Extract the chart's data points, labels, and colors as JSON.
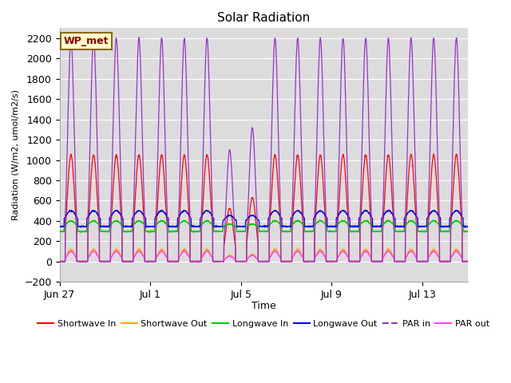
{
  "title": "Solar Radiation",
  "xlabel": "Time",
  "ylabel": "Radiation (W/m2, umol/m2/s)",
  "ylim": [
    -200,
    2300
  ],
  "yticks": [
    -200,
    0,
    200,
    400,
    600,
    800,
    1000,
    1200,
    1400,
    1600,
    1800,
    2000,
    2200
  ],
  "bg_color": "#dcdcdc",
  "grid_color": "#ffffff",
  "station_label": "WP_met",
  "station_label_bg": "#ffffcc",
  "station_label_border": "#8b6914",
  "station_label_text": "#8b0000",
  "n_days": 18,
  "pts_per_day": 144,
  "xtick_labels": [
    "Jun 27",
    "Jul 1",
    "Jul 5",
    "Jul 9",
    "Jul 13"
  ],
  "xtick_days": [
    0,
    4,
    8,
    12,
    16
  ],
  "series_names": [
    "Shortwave In",
    "Shortwave Out",
    "Longwave In",
    "Longwave Out",
    "PAR in",
    "PAR out"
  ],
  "series_colors": [
    "#ff0000",
    "#ffa500",
    "#00cc00",
    "#0000ee",
    "#9933cc",
    "#ff44ff"
  ],
  "series_styles": [
    "-",
    "-",
    "-",
    "-",
    "-",
    "-"
  ]
}
